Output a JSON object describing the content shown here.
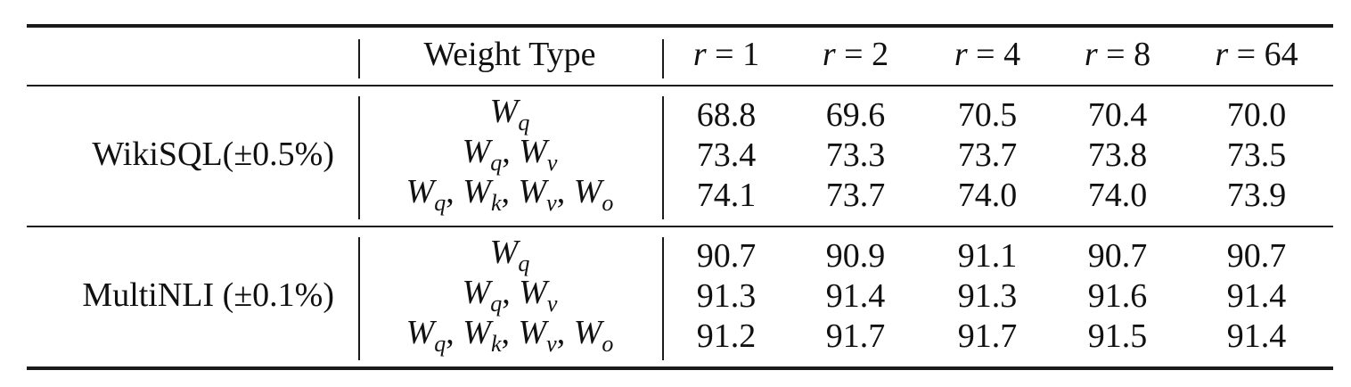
{
  "table": {
    "header": {
      "blank": "",
      "weight_type": "Weight Type",
      "ranks": [
        "1",
        "2",
        "4",
        "8",
        "64"
      ],
      "rank_var": "r",
      "equals": "="
    },
    "groups": [
      {
        "name": "WikiSQL(±0.5%)",
        "rows": [
          {
            "weights": [
              "q"
            ],
            "values": [
              "68.8",
              "69.6",
              "70.5",
              "70.4",
              "70.0"
            ]
          },
          {
            "weights": [
              "q",
              "v"
            ],
            "values": [
              "73.4",
              "73.3",
              "73.7",
              "73.8",
              "73.5"
            ]
          },
          {
            "weights": [
              "q",
              "k",
              "v",
              "o"
            ],
            "values": [
              "74.1",
              "73.7",
              "74.0",
              "74.0",
              "73.9"
            ]
          }
        ]
      },
      {
        "name": "MultiNLI (±0.1%)",
        "rows": [
          {
            "weights": [
              "q"
            ],
            "values": [
              "90.7",
              "90.9",
              "91.1",
              "90.7",
              "90.7"
            ]
          },
          {
            "weights": [
              "q",
              "v"
            ],
            "values": [
              "91.3",
              "91.4",
              "91.3",
              "91.6",
              "91.4"
            ]
          },
          {
            "weights": [
              "q",
              "k",
              "v",
              "o"
            ],
            "values": [
              "91.2",
              "91.7",
              "91.7",
              "91.5",
              "91.4"
            ]
          }
        ]
      }
    ],
    "weight_symbol": "W"
  }
}
